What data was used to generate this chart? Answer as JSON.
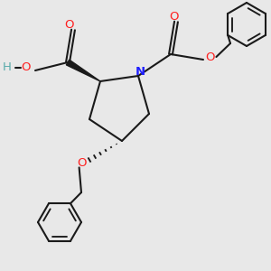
{
  "background_color": "#e8e8e8",
  "bond_color": "#1a1a1a",
  "N_color": "#2020ff",
  "O_color": "#ff2020",
  "H_color": "#5aacac",
  "line_width": 1.5,
  "font_size": 8.5,
  "fig_width": 3.0,
  "fig_height": 3.0,
  "dpi": 100,
  "xlim": [
    0,
    10
  ],
  "ylim": [
    0,
    10
  ]
}
